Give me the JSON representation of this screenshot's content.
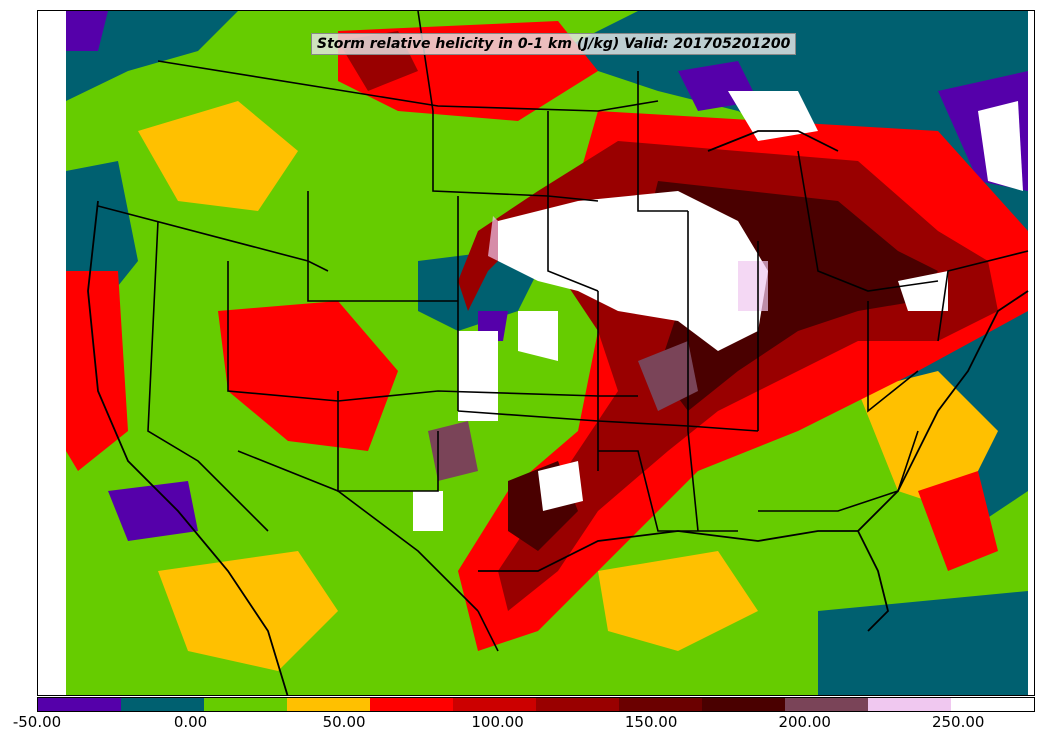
{
  "title": "Storm relative helicity in 0-1 km (J/kg) Valid: 201705201200",
  "colorbar": {
    "colors": [
      "#5500aa",
      "#006070",
      "#66cc00",
      "#ffc000",
      "#ff0000",
      "#cc0000",
      "#990000",
      "#6b0000",
      "#4a0000",
      "#7a4458",
      "#f0c8f0",
      "#ffffff"
    ],
    "ticks": [
      {
        "label": "-50.00",
        "value": -50
      },
      {
        "label": "0.00",
        "value": 0
      },
      {
        "label": "50.00",
        "value": 50
      },
      {
        "label": "100.00",
        "value": 100
      },
      {
        "label": "150.00",
        "value": 150
      },
      {
        "label": "200.00",
        "value": 200
      },
      {
        "label": "250.00",
        "value": 250
      }
    ],
    "range": [
      -50,
      275
    ]
  }
}
